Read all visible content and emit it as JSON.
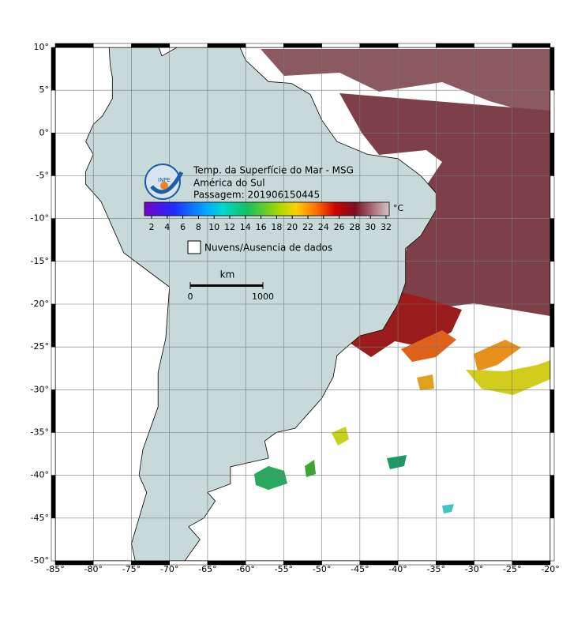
{
  "header": {
    "title": "Temp. da Superfície do Mar - MSG",
    "region": "América do Sul",
    "pass": "Passagem: 201906150445",
    "logo": "INPE"
  },
  "colorbar": {
    "ticks": [
      2,
      4,
      6,
      8,
      10,
      12,
      14,
      16,
      18,
      20,
      22,
      24,
      26,
      28,
      30,
      32
    ],
    "unit": "°C"
  },
  "legend": {
    "label": "Nuvens/Ausencia de dados"
  },
  "scale": {
    "unit": "km",
    "ticks": [
      0,
      1000
    ]
  },
  "axes": {
    "lon": [
      {
        "value": -85,
        "label": "-85°"
      },
      {
        "value": -80,
        "label": "-80°"
      },
      {
        "value": -75,
        "label": "-75°"
      },
      {
        "value": -70,
        "label": "-70°"
      },
      {
        "value": -65,
        "label": "-65°"
      },
      {
        "value": -60,
        "label": "-60°"
      },
      {
        "value": -55,
        "label": "-55°"
      },
      {
        "value": -50,
        "label": "-50°"
      },
      {
        "value": -45,
        "label": "-45°"
      },
      {
        "value": -40,
        "label": "-40°"
      },
      {
        "value": -35,
        "label": "-35°"
      },
      {
        "value": -30,
        "label": "-30°"
      },
      {
        "value": -25,
        "label": "-25°"
      },
      {
        "value": -20,
        "label": "-20°"
      }
    ],
    "lat": [
      {
        "value": 10,
        "label": "10°"
      },
      {
        "value": 5,
        "label": "5°"
      },
      {
        "value": 0,
        "label": "0°"
      },
      {
        "value": -5,
        "label": "-5°"
      },
      {
        "value": -10,
        "label": "-10°"
      },
      {
        "value": -15,
        "label": "-15°"
      },
      {
        "value": -20,
        "label": "-20°"
      },
      {
        "value": -25,
        "label": "-25°"
      },
      {
        "value": -30,
        "label": "-30°"
      },
      {
        "value": -35,
        "label": "-35°"
      },
      {
        "value": -40,
        "label": "-40°"
      },
      {
        "value": -45,
        "label": "-45°"
      },
      {
        "value": -50,
        "label": "-50°"
      }
    ]
  }
}
